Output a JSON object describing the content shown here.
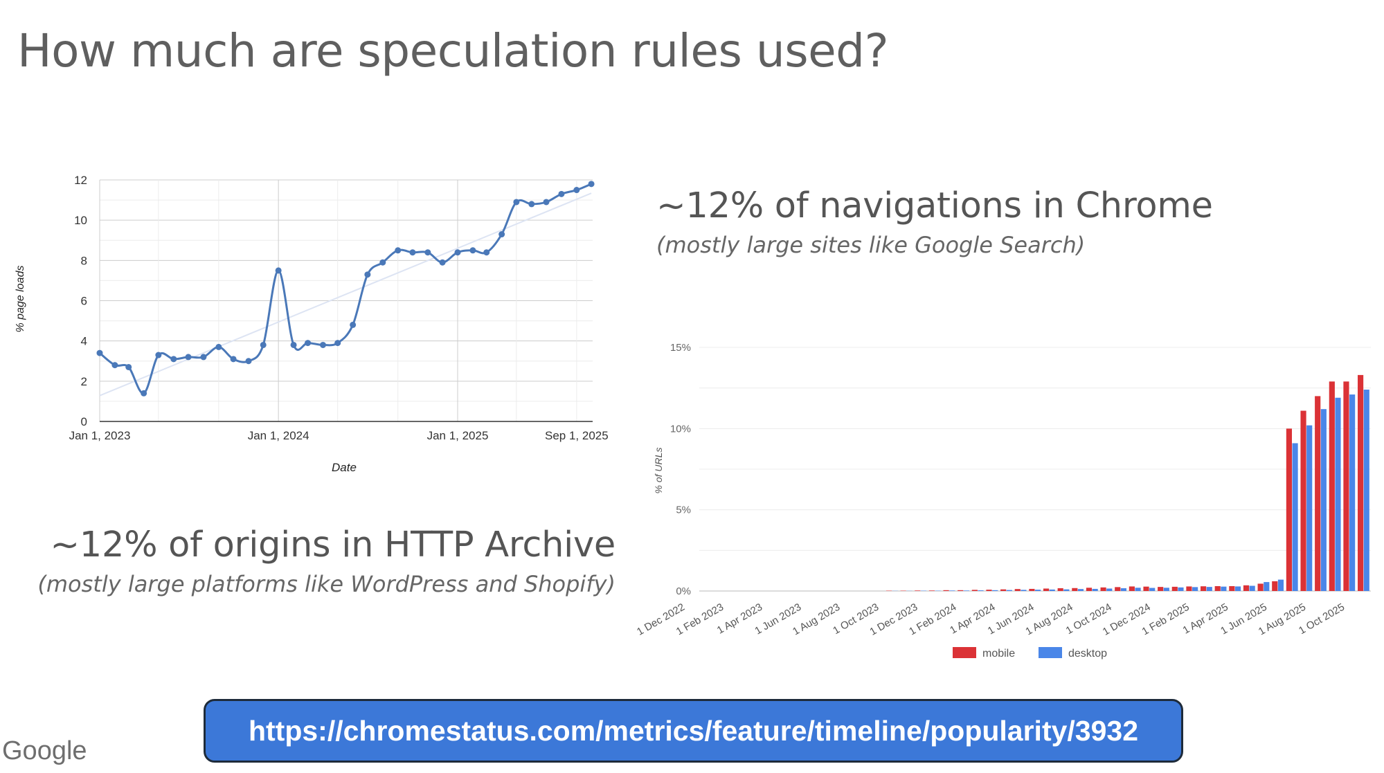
{
  "slide": {
    "title": "How much are speculation rules used?",
    "right_caption": {
      "heading": "~12% of navigations in Chrome",
      "subheading": "(mostly large sites like Google Search)"
    },
    "left_caption": {
      "heading": "~12% of origins in HTTP Archive",
      "subheading": "(mostly large platforms like WordPress and Shopify)"
    },
    "link": "https://chromestatus.com/metrics/feature/timeline/popularity/3932",
    "logo": "Google",
    "colors": {
      "link_bar": "#3c78d8",
      "line": "#4a78b8",
      "mobile": "#db3236",
      "desktop": "#4a86e8"
    }
  },
  "chart_data": [
    {
      "type": "line",
      "xlabel": "Date",
      "ylabel": "% page loads",
      "ylim": [
        0,
        12
      ],
      "yticks": [
        "0",
        "2",
        "4",
        "6",
        "8",
        "10",
        "12"
      ],
      "xticks": [
        "Jan 1, 2023",
        "Jan 1, 2024",
        "Jan 1, 2025",
        "Sep 1, 2025"
      ],
      "grid": true,
      "trendline": true,
      "series": [
        {
          "x": [
            "2023-01-01",
            "2023-02-01",
            "2023-03-01",
            "2023-04-01",
            "2023-05-01",
            "2023-06-01",
            "2023-07-01",
            "2023-08-01",
            "2023-09-01",
            "2023-10-01",
            "2023-11-01",
            "2023-12-01",
            "2024-01-01",
            "2024-02-01",
            "2024-03-01",
            "2024-04-01",
            "2024-05-01",
            "2024-06-01",
            "2024-07-01",
            "2024-08-01",
            "2024-09-01",
            "2024-10-01",
            "2024-11-01",
            "2024-12-01",
            "2025-01-01",
            "2025-02-01",
            "2025-03-01",
            "2025-04-01",
            "2025-05-01",
            "2025-06-01",
            "2025-07-01",
            "2025-08-01",
            "2025-09-01",
            "2025-10-01"
          ],
          "values": [
            3.4,
            2.8,
            2.7,
            1.4,
            3.3,
            3.1,
            3.2,
            3.2,
            3.7,
            3.1,
            3.0,
            3.8,
            7.5,
            3.8,
            3.9,
            3.8,
            3.9,
            4.8,
            7.3,
            7.9,
            8.5,
            8.4,
            8.4,
            7.9,
            8.4,
            8.5,
            8.4,
            9.3,
            10.9,
            10.8,
            10.9,
            11.3,
            11.5,
            11.8
          ]
        }
      ]
    },
    {
      "type": "bar",
      "ylabel": "% of URLs",
      "ylim": [
        0,
        15
      ],
      "yticks": [
        "0%",
        "5%",
        "10%",
        "15%"
      ],
      "xticks": [
        "1 Dec 2022",
        "1 Feb 2023",
        "1 Apr 2023",
        "1 Jun 2023",
        "1 Aug 2023",
        "1 Oct 2023",
        "1 Dec 2023",
        "1 Feb 2024",
        "1 Apr 2024",
        "1 Jun 2024",
        "1 Aug 2024",
        "1 Oct 2024",
        "1 Dec 2024",
        "1 Feb 2025",
        "1 Apr 2025",
        "1 Jun 2025",
        "1 Aug 2025",
        "1 Oct 2025"
      ],
      "legend": "bottom",
      "series": [
        {
          "name": "mobile",
          "values": [
            0.0,
            0.0,
            0.0,
            0.0,
            0.0,
            0.0,
            0.0,
            0.0,
            0.0,
            0.0,
            0.0,
            0.0,
            0.0,
            0.02,
            0.02,
            0.03,
            0.03,
            0.05,
            0.05,
            0.07,
            0.08,
            0.1,
            0.12,
            0.13,
            0.15,
            0.17,
            0.18,
            0.2,
            0.22,
            0.24,
            0.28,
            0.27,
            0.25,
            0.26,
            0.28,
            0.29,
            0.3,
            0.3,
            0.35,
            0.45,
            0.6,
            10.0,
            11.1,
            12.0,
            12.9,
            12.9,
            13.3
          ]
        },
        {
          "name": "desktop",
          "values": [
            0.0,
            0.0,
            0.0,
            0.0,
            0.0,
            0.0,
            0.0,
            0.0,
            0.0,
            0.0,
            0.0,
            0.0,
            0.0,
            0.01,
            0.01,
            0.02,
            0.02,
            0.03,
            0.03,
            0.04,
            0.05,
            0.06,
            0.07,
            0.08,
            0.09,
            0.1,
            0.12,
            0.13,
            0.15,
            0.17,
            0.2,
            0.19,
            0.2,
            0.22,
            0.24,
            0.25,
            0.27,
            0.28,
            0.32,
            0.55,
            0.7,
            9.1,
            10.2,
            11.2,
            11.9,
            12.1,
            12.4
          ]
        }
      ]
    }
  ]
}
